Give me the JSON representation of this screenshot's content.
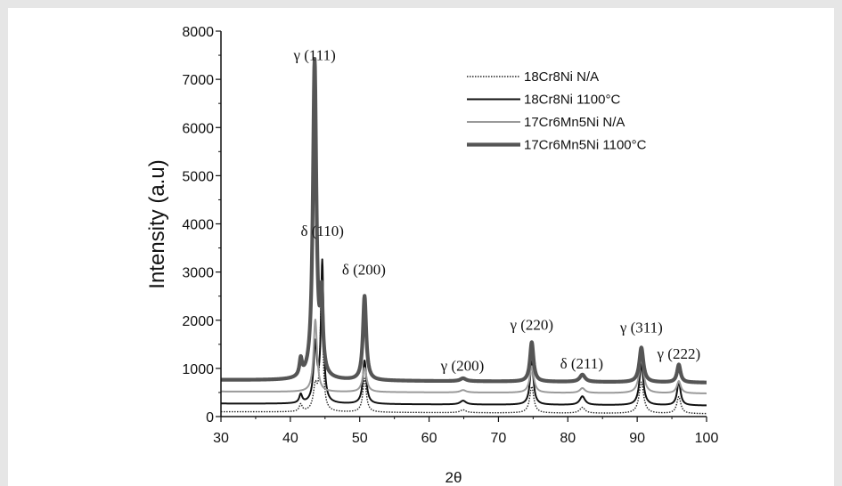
{
  "chart_data": {
    "type": "line",
    "xlabel": "2θ",
    "ylabel": "Intensity (a.u)",
    "xlim": [
      30,
      100
    ],
    "ylim": [
      0,
      8000
    ],
    "xticks": [
      30,
      40,
      50,
      60,
      70,
      80,
      90,
      100
    ],
    "yticks": [
      0,
      1000,
      2000,
      3000,
      4000,
      5000,
      6000,
      7000,
      8000
    ],
    "grid": false,
    "legend_position": "top-right",
    "peak_labels": [
      {
        "text": "γ (111)",
        "x": 43.5,
        "y": 7400
      },
      {
        "text": "δ (110)",
        "x": 44.6,
        "y": 3750
      },
      {
        "text": "δ (200)",
        "x": 50.6,
        "y": 2950
      },
      {
        "text": "γ (200)",
        "x": 64.8,
        "y": 950
      },
      {
        "text": "γ (220)",
        "x": 74.8,
        "y": 1800
      },
      {
        "text": "δ (211)",
        "x": 82.0,
        "y": 1000
      },
      {
        "text": "γ (311)",
        "x": 90.6,
        "y": 1750
      },
      {
        "text": "γ (222)",
        "x": 96.0,
        "y": 1200
      }
    ],
    "series": [
      {
        "name": "18Cr8Ni N/A",
        "color": "#222222",
        "style": "dotted",
        "baseline": 100,
        "peaks": [
          [
            41.5,
            150,
            0.25
          ],
          [
            43.6,
            500,
            0.35
          ],
          [
            44.5,
            2600,
            0.22
          ],
          [
            50.7,
            700,
            0.3
          ],
          [
            64.9,
            60,
            0.5
          ],
          [
            74.8,
            550,
            0.35
          ],
          [
            82.1,
            120,
            0.45
          ],
          [
            90.6,
            650,
            0.4
          ],
          [
            96.0,
            350,
            0.35
          ]
        ]
      },
      {
        "name": "18Cr8Ni 1100°C",
        "color": "#111111",
        "style": "solid",
        "baseline": 270,
        "peaks": [
          [
            41.5,
            180,
            0.25
          ],
          [
            43.6,
            1200,
            0.3
          ],
          [
            44.6,
            2900,
            0.22
          ],
          [
            50.7,
            900,
            0.3
          ],
          [
            64.9,
            80,
            0.5
          ],
          [
            74.8,
            900,
            0.3
          ],
          [
            82.1,
            180,
            0.45
          ],
          [
            90.6,
            850,
            0.35
          ],
          [
            96.0,
            500,
            0.3
          ]
        ]
      },
      {
        "name": "17Cr6Mn5Ni N/A",
        "color": "#9a9a9a",
        "style": "solid",
        "baseline": 520,
        "peaks": [
          [
            43.6,
            1500,
            0.3
          ],
          [
            50.7,
            500,
            0.35
          ],
          [
            64.9,
            50,
            0.5
          ],
          [
            74.8,
            550,
            0.35
          ],
          [
            82.1,
            100,
            0.45
          ],
          [
            90.6,
            700,
            0.4
          ],
          [
            96.0,
            250,
            0.35
          ]
        ]
      },
      {
        "name": "17Cr6Mn5Ni 1100°C",
        "color": "#555555",
        "style": "thick",
        "baseline": 760,
        "peaks": [
          [
            41.5,
            350,
            0.22
          ],
          [
            43.5,
            6600,
            0.3
          ],
          [
            44.5,
            1500,
            0.22
          ],
          [
            50.7,
            1750,
            0.28
          ],
          [
            64.9,
            60,
            0.5
          ],
          [
            74.8,
            820,
            0.3
          ],
          [
            82.1,
            150,
            0.45
          ],
          [
            90.6,
            720,
            0.35
          ],
          [
            96.0,
            370,
            0.3
          ]
        ]
      }
    ]
  }
}
